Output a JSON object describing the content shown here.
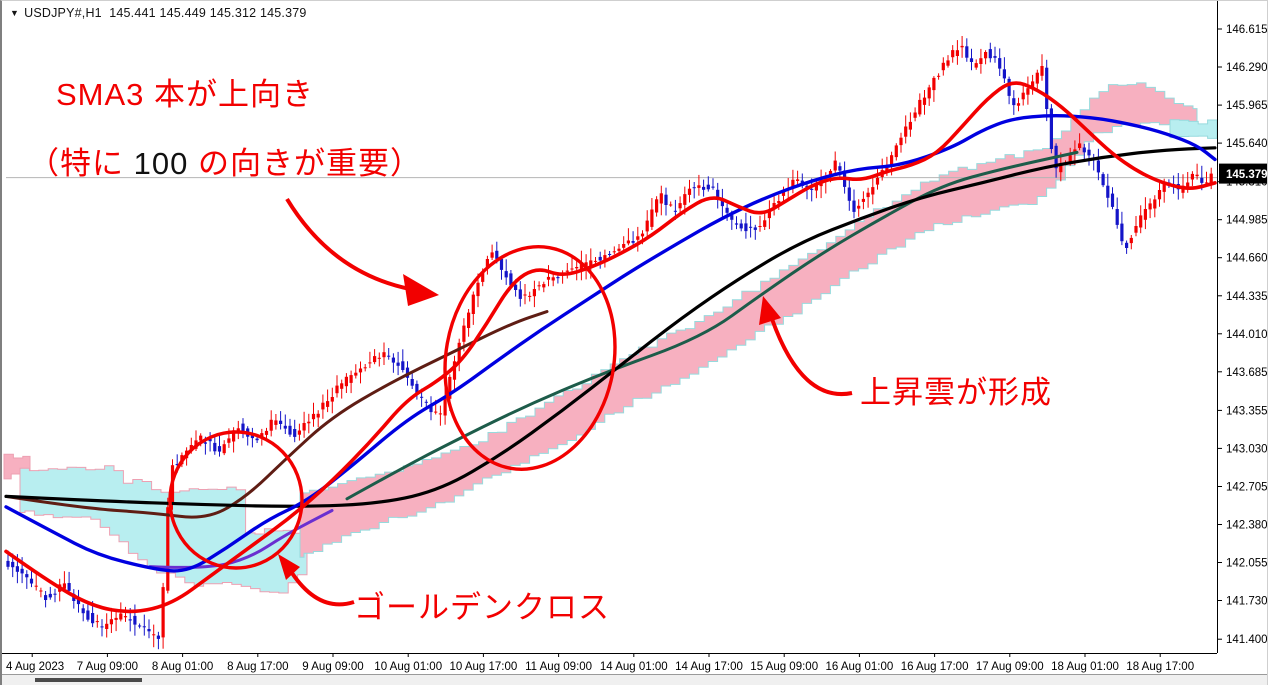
{
  "window": {
    "dropdown_icon": "▼",
    "title_symbol": "USDJPY#,H1",
    "title_quotes": "145.441 145.449 145.312 145.379"
  },
  "annotations": {
    "note1": "SMA3 本が上向き",
    "note2_pre": "（特に ",
    "note2_num": "100",
    "note2_post": " の向きが重要）",
    "cloud_note": "上昇雲が形成",
    "golden_note": "ゴールデンクロス"
  },
  "colors": {
    "bull_candle": "#f20000",
    "bear_candle": "#1414c8",
    "sma_fast": "#f20000",
    "sma_mid": "#0000e0",
    "sma_100": "#000000",
    "senkou_green": "#1d5c4a",
    "maroon_line": "#5f1d14",
    "purple_line": "#6a2fd0",
    "cloud_pink": "#f7b0c0",
    "cloud_cyan": "#b8eef0",
    "cloud_pink_edge": "#eda0b2",
    "cloud_cyan_edge": "#96dadd",
    "annotation_red": "#f20000",
    "price_line": "#b4b4b4",
    "badge_bg": "#000000",
    "badge_text": "#ffffff",
    "axis_text": "#000000"
  },
  "chart_data": {
    "type": "candlestick",
    "title": "USDJPY#,H1",
    "legend": "none",
    "grid": "off",
    "ohlc_current": {
      "open": 145.441,
      "high": 145.449,
      "low": 145.312,
      "close": 145.379
    },
    "current_price": 145.379,
    "ylim": [
      141.2,
      146.75
    ],
    "y_ticks": [
      146.615,
      146.29,
      145.965,
      145.64,
      145.31,
      144.985,
      144.66,
      144.335,
      144.01,
      143.685,
      143.355,
      143.03,
      142.705,
      142.38,
      142.055,
      141.73,
      141.4
    ],
    "x_labels": [
      "4 Aug 2023",
      "7 Aug 09:00",
      "8 Aug 01:00",
      "8 Aug 17:00",
      "9 Aug 09:00",
      "10 Aug 01:00",
      "10 Aug 17:00",
      "11 Aug 09:00",
      "14 Aug 01:00",
      "14 Aug 17:00",
      "15 Aug 09:00",
      "16 Aug 01:00",
      "16 Aug 17:00",
      "17 Aug 09:00",
      "18 Aug 01:00",
      "18 Aug 17:00"
    ],
    "candles_per_x_label": 16,
    "price_path": [
      [
        5,
        142.05
      ],
      [
        25,
        141.9
      ],
      [
        45,
        141.75
      ],
      [
        62,
        141.88
      ],
      [
        82,
        141.62
      ],
      [
        100,
        141.5
      ],
      [
        120,
        141.62
      ],
      [
        140,
        141.5
      ],
      [
        158,
        141.38
      ],
      [
        168,
        142.85
      ],
      [
        182,
        142.98
      ],
      [
        200,
        143.12
      ],
      [
        218,
        143.0
      ],
      [
        236,
        143.22
      ],
      [
        254,
        143.1
      ],
      [
        272,
        143.28
      ],
      [
        292,
        143.15
      ],
      [
        312,
        143.3
      ],
      [
        335,
        143.55
      ],
      [
        358,
        143.72
      ],
      [
        380,
        143.85
      ],
      [
        398,
        143.75
      ],
      [
        418,
        143.45
      ],
      [
        438,
        143.3
      ],
      [
        455,
        143.85
      ],
      [
        470,
        144.3
      ],
      [
        488,
        144.72
      ],
      [
        505,
        144.5
      ],
      [
        520,
        144.3
      ],
      [
        540,
        144.45
      ],
      [
        565,
        144.55
      ],
      [
        590,
        144.62
      ],
      [
        615,
        144.75
      ],
      [
        640,
        144.85
      ],
      [
        658,
        145.2
      ],
      [
        672,
        145.05
      ],
      [
        690,
        145.28
      ],
      [
        710,
        145.25
      ],
      [
        732,
        144.95
      ],
      [
        752,
        144.88
      ],
      [
        772,
        145.12
      ],
      [
        792,
        145.32
      ],
      [
        812,
        145.25
      ],
      [
        835,
        145.48
      ],
      [
        850,
        145.05
      ],
      [
        865,
        145.18
      ],
      [
        885,
        145.45
      ],
      [
        905,
        145.8
      ],
      [
        925,
        146.08
      ],
      [
        942,
        146.32
      ],
      [
        958,
        146.48
      ],
      [
        970,
        146.3
      ],
      [
        983,
        146.42
      ],
      [
        997,
        146.32
      ],
      [
        1010,
        145.95
      ],
      [
        1026,
        146.1
      ],
      [
        1040,
        146.28
      ],
      [
        1052,
        145.4
      ],
      [
        1064,
        145.5
      ],
      [
        1078,
        145.62
      ],
      [
        1092,
        145.48
      ],
      [
        1108,
        145.15
      ],
      [
        1122,
        144.72
      ],
      [
        1136,
        144.98
      ],
      [
        1150,
        145.12
      ],
      [
        1164,
        145.32
      ],
      [
        1178,
        145.22
      ],
      [
        1192,
        145.4
      ],
      [
        1204,
        145.28
      ],
      [
        1212,
        145.38
      ]
    ],
    "overlays": {
      "sma_fast_red": [
        [
          4,
          142.15
        ],
        [
          45,
          141.9
        ],
        [
          90,
          141.68
        ],
        [
          130,
          141.62
        ],
        [
          170,
          141.7
        ],
        [
          210,
          141.95
        ],
        [
          250,
          142.2
        ],
        [
          290,
          142.45
        ],
        [
          330,
          142.75
        ],
        [
          370,
          143.1
        ],
        [
          405,
          143.45
        ],
        [
          435,
          143.6
        ],
        [
          460,
          143.78
        ],
        [
          485,
          144.1
        ],
        [
          510,
          144.45
        ],
        [
          535,
          144.58
        ],
        [
          560,
          144.5
        ],
        [
          590,
          144.58
        ],
        [
          620,
          144.7
        ],
        [
          650,
          144.85
        ],
        [
          680,
          145.05
        ],
        [
          710,
          145.2
        ],
        [
          735,
          145.1
        ],
        [
          760,
          145.02
        ],
        [
          785,
          145.15
        ],
        [
          810,
          145.28
        ],
        [
          835,
          145.35
        ],
        [
          860,
          145.32
        ],
        [
          885,
          145.4
        ],
        [
          910,
          145.45
        ],
        [
          935,
          145.55
        ],
        [
          960,
          145.78
        ],
        [
          985,
          146.02
        ],
        [
          1010,
          146.18
        ],
        [
          1035,
          146.1
        ],
        [
          1060,
          145.95
        ],
        [
          1085,
          145.75
        ],
        [
          1110,
          145.55
        ],
        [
          1135,
          145.4
        ],
        [
          1160,
          145.3
        ],
        [
          1188,
          145.24
        ],
        [
          1213,
          145.3
        ]
      ],
      "sma_mid_blue": [
        [
          4,
          142.53
        ],
        [
          50,
          142.32
        ],
        [
          95,
          142.12
        ],
        [
          150,
          142.0
        ],
        [
          185,
          141.97
        ],
        [
          225,
          142.18
        ],
        [
          265,
          142.42
        ],
        [
          305,
          142.58
        ],
        [
          350,
          142.88
        ],
        [
          405,
          143.28
        ],
        [
          450,
          143.5
        ],
        [
          495,
          143.78
        ],
        [
          540,
          144.05
        ],
        [
          585,
          144.3
        ],
        [
          630,
          144.55
        ],
        [
          675,
          144.78
        ],
        [
          720,
          145.0
        ],
        [
          765,
          145.18
        ],
        [
          810,
          145.32
        ],
        [
          855,
          145.42
        ],
        [
          900,
          145.45
        ],
        [
          950,
          145.6
        ],
        [
          980,
          145.75
        ],
        [
          1010,
          145.85
        ],
        [
          1050,
          145.88
        ],
        [
          1090,
          145.86
        ],
        [
          1130,
          145.8
        ],
        [
          1165,
          145.72
        ],
        [
          1195,
          145.62
        ],
        [
          1213,
          145.5
        ]
      ],
      "sma_100_black": [
        [
          4,
          142.62
        ],
        [
          100,
          142.58
        ],
        [
          200,
          142.55
        ],
        [
          300,
          142.53
        ],
        [
          380,
          142.56
        ],
        [
          440,
          142.68
        ],
        [
          500,
          142.98
        ],
        [
          560,
          143.35
        ],
        [
          620,
          143.75
        ],
        [
          680,
          144.15
        ],
        [
          740,
          144.5
        ],
        [
          800,
          144.8
        ],
        [
          860,
          145.0
        ],
        [
          920,
          145.18
        ],
        [
          980,
          145.3
        ],
        [
          1040,
          145.43
        ],
        [
          1100,
          145.52
        ],
        [
          1160,
          145.58
        ],
        [
          1213,
          145.6
        ]
      ],
      "senkou_green": [
        [
          345,
          142.6
        ],
        [
          400,
          142.86
        ],
        [
          440,
          143.04
        ],
        [
          520,
          143.38
        ],
        [
          600,
          143.67
        ],
        [
          700,
          143.98
        ],
        [
          760,
          144.35
        ],
        [
          820,
          144.7
        ],
        [
          880,
          145.0
        ],
        [
          940,
          145.28
        ],
        [
          1000,
          145.42
        ],
        [
          1075,
          145.56
        ]
      ],
      "maroon_line": [
        [
          4,
          142.62
        ],
        [
          80,
          142.52
        ],
        [
          150,
          142.48
        ],
        [
          205,
          142.42
        ],
        [
          245,
          142.62
        ],
        [
          285,
          142.95
        ],
        [
          330,
          143.3
        ],
        [
          390,
          143.6
        ],
        [
          450,
          143.85
        ],
        [
          510,
          144.1
        ],
        [
          545,
          144.2
        ]
      ],
      "kijun_purple": [
        [
          148,
          142.02
        ],
        [
          200,
          142.0
        ],
        [
          245,
          142.08
        ],
        [
          285,
          142.3
        ],
        [
          330,
          142.5
        ]
      ]
    },
    "clouds": {
      "bear_cyan": {
        "upper": [
          [
            18,
            142.86
          ],
          [
            120,
            142.86
          ],
          [
            121,
            142.74
          ],
          [
            148,
            142.74
          ],
          [
            149,
            142.68
          ],
          [
            238,
            142.68
          ],
          [
            239,
            142.32
          ],
          [
            305,
            142.32
          ]
        ],
        "lower": [
          [
            18,
            142.5
          ],
          [
            60,
            142.44
          ],
          [
            100,
            142.42
          ],
          [
            130,
            142.2
          ],
          [
            160,
            141.98
          ],
          [
            195,
            141.88
          ],
          [
            230,
            141.86
          ],
          [
            260,
            141.82
          ],
          [
            285,
            141.8
          ],
          [
            305,
            141.95
          ]
        ]
      },
      "bull_pink": {
        "upper": [
          [
            298,
            142.65
          ],
          [
            340,
            142.72
          ],
          [
            390,
            142.85
          ],
          [
            450,
            143.0
          ],
          [
            510,
            143.25
          ],
          [
            570,
            143.55
          ],
          [
            630,
            143.85
          ],
          [
            690,
            144.1
          ],
          [
            750,
            144.4
          ],
          [
            810,
            144.7
          ],
          [
            870,
            145.05
          ],
          [
            930,
            145.35
          ],
          [
            990,
            145.5
          ],
          [
            1040,
            145.58
          ],
          [
            1075,
            145.9
          ],
          [
            1100,
            146.12
          ],
          [
            1125,
            146.16
          ],
          [
            1150,
            146.08
          ],
          [
            1175,
            145.98
          ],
          [
            1195,
            145.9
          ]
        ],
        "lower": [
          [
            298,
            142.08
          ],
          [
            340,
            142.25
          ],
          [
            390,
            142.4
          ],
          [
            450,
            142.58
          ],
          [
            510,
            142.85
          ],
          [
            570,
            143.1
          ],
          [
            630,
            143.4
          ],
          [
            690,
            143.65
          ],
          [
            750,
            143.95
          ],
          [
            810,
            144.25
          ],
          [
            870,
            144.6
          ],
          [
            930,
            144.9
          ],
          [
            990,
            145.05
          ],
          [
            1040,
            145.12
          ],
          [
            1075,
            145.45
          ],
          [
            1100,
            145.72
          ],
          [
            1125,
            145.8
          ],
          [
            1195,
            145.78
          ]
        ]
      },
      "right_cyan": {
        "upper": [
          [
            1168,
            145.84
          ],
          [
            1215,
            145.82
          ]
        ],
        "lower": [
          [
            1168,
            145.68
          ],
          [
            1215,
            145.68
          ]
        ]
      },
      "topleft_pink": {
        "upper": [
          [
            2,
            142.98
          ],
          [
            28,
            142.95
          ]
        ],
        "lower": [
          [
            2,
            142.78
          ],
          [
            28,
            142.8
          ]
        ]
      }
    }
  }
}
